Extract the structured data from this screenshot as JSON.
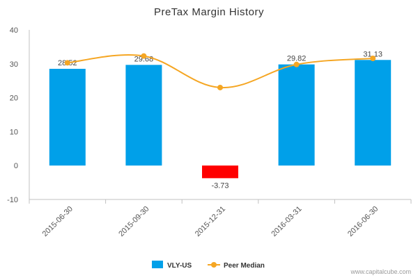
{
  "chart_data": {
    "type": "bar",
    "title": "PreTax Margin History",
    "categories": [
      "2015-06-30",
      "2015-09-30",
      "2015-12-31",
      "2016-03-31",
      "2016-06-30"
    ],
    "series": [
      {
        "name": "VLY-US",
        "type": "bar",
        "values": [
          28.52,
          29.68,
          -3.73,
          29.82,
          31.13
        ],
        "data_labels": [
          "28.52",
          "29.68",
          "-3.73",
          "29.82",
          "31.13"
        ],
        "color": "#00a0e9",
        "negative_color": "#ff0000"
      },
      {
        "name": "Peer Median",
        "type": "line",
        "smooth": true,
        "values": [
          30.3,
          32.3,
          23.0,
          29.8,
          31.6
        ],
        "color": "#f5a623"
      }
    ],
    "ylim": [
      -10,
      40
    ],
    "yticks": [
      "-10",
      "0",
      "10",
      "20",
      "30",
      "40"
    ],
    "grid": false,
    "legend": "bottom-center"
  },
  "credit": "www.capitalcube.com"
}
